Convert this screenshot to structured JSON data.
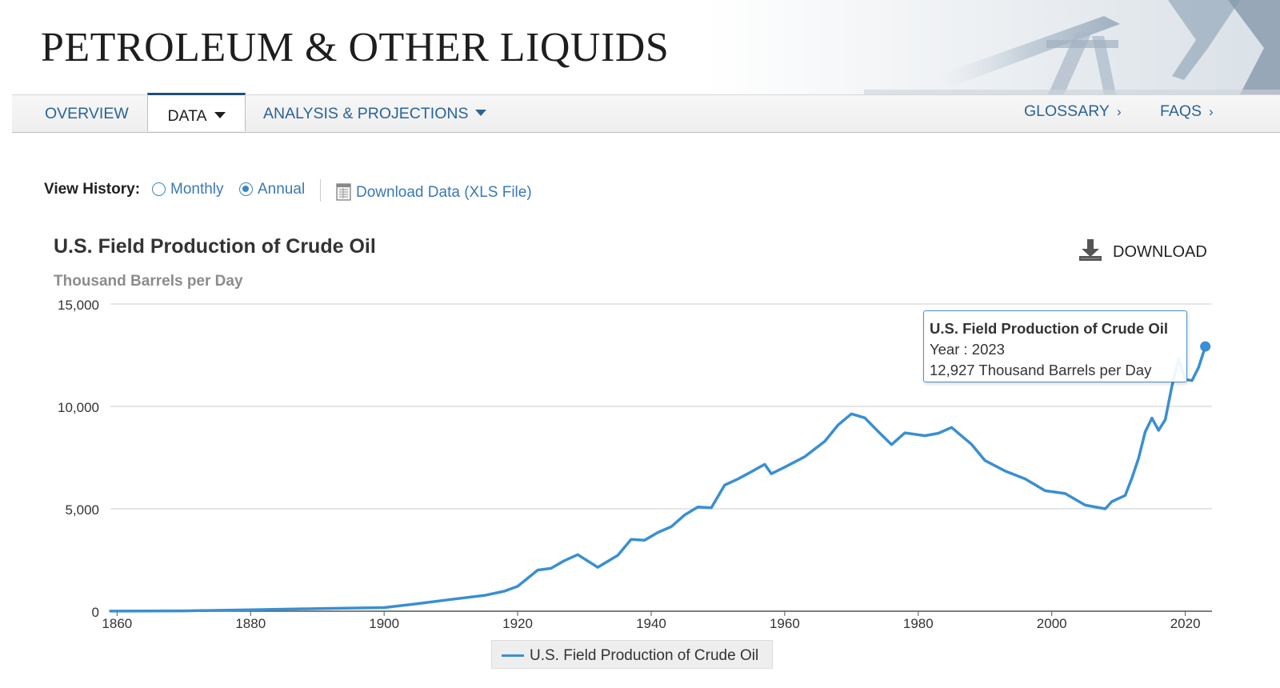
{
  "header": {
    "title": "PETROLEUM & OTHER LIQUIDS"
  },
  "nav": {
    "overview": "OVERVIEW",
    "data": "DATA",
    "analysis": "ANALYSIS & PROJECTIONS",
    "glossary": "GLOSSARY",
    "faqs": "FAQS"
  },
  "view_history": {
    "label": "View History:",
    "monthly": "Monthly",
    "annual": "Annual",
    "selected": "annual",
    "download_data": "Download Data (XLS File)"
  },
  "download_label": "DOWNLOAD",
  "colors": {
    "series": "#3a8fd1",
    "link": "#3a78b5",
    "nav_link": "#2a6496",
    "grid": "#cccccc"
  },
  "icons": {
    "download": "download-icon",
    "xls": "spreadsheet-icon",
    "caret": "caret-down-icon",
    "chevron": "chevron-right-icon"
  },
  "tooltip": {
    "title": "U.S. Field Production of Crude Oil",
    "year_line": "Year : 2023",
    "value_line": "12,927 Thousand Barrels per Day"
  },
  "chart_data": {
    "type": "line",
    "title": "U.S. Field Production of Crude Oil",
    "ylabel": "Thousand Barrels per Day",
    "xlabel": "",
    "xlim": [
      1859,
      2024
    ],
    "ylim": [
      0,
      15000
    ],
    "yticks": [
      0,
      5000,
      10000,
      15000
    ],
    "ytick_labels": [
      "0",
      "5,000",
      "10,000",
      "15,000"
    ],
    "xticks": [
      1860,
      1880,
      1900,
      1920,
      1940,
      1960,
      1980,
      2000,
      2020
    ],
    "xtick_labels": [
      "1860",
      "1880",
      "1900",
      "1920",
      "1940",
      "1960",
      "1980",
      "2000",
      "2020"
    ],
    "grid": true,
    "legend_position": "bottom-center",
    "series": [
      {
        "name": "U.S. Field Production of Crude Oil",
        "x": [
          1859,
          1870,
          1880,
          1890,
          1900,
          1905,
          1910,
          1915,
          1918,
          1920,
          1923,
          1925,
          1927,
          1929,
          1932,
          1935,
          1937,
          1939,
          1941,
          1943,
          1945,
          1947,
          1949,
          1951,
          1953,
          1955,
          1957,
          1958,
          1960,
          1963,
          1966,
          1968,
          1970,
          1972,
          1974,
          1976,
          1978,
          1981,
          1983,
          1985,
          1988,
          1990,
          1993,
          1996,
          1999,
          2002,
          2005,
          2008,
          2009,
          2011,
          2012,
          2013,
          2014,
          2015,
          2016,
          2017,
          2018,
          2019,
          2020,
          2021,
          2022,
          2023
        ],
        "values": [
          2,
          14,
          71,
          125,
          174,
          367,
          574,
          770,
          975,
          1214,
          2007,
          2092,
          2469,
          2760,
          2146,
          2730,
          3505,
          3466,
          3842,
          4125,
          4695,
          5088,
          5046,
          6158,
          6458,
          6807,
          7170,
          6710,
          7035,
          7542,
          8295,
          9096,
          9637,
          9441,
          8774,
          8132,
          8707,
          8572,
          8688,
          8971,
          8140,
          7355,
          6847,
          6465,
          5881,
          5746,
          5178,
          5000,
          5353,
          5652,
          6500,
          7467,
          8759,
          9431,
          8831,
          9352,
          10991,
          12315,
          11318,
          11262,
          11911,
          12927
        ]
      }
    ],
    "highlight": {
      "x": 2023,
      "value": 12927
    }
  }
}
